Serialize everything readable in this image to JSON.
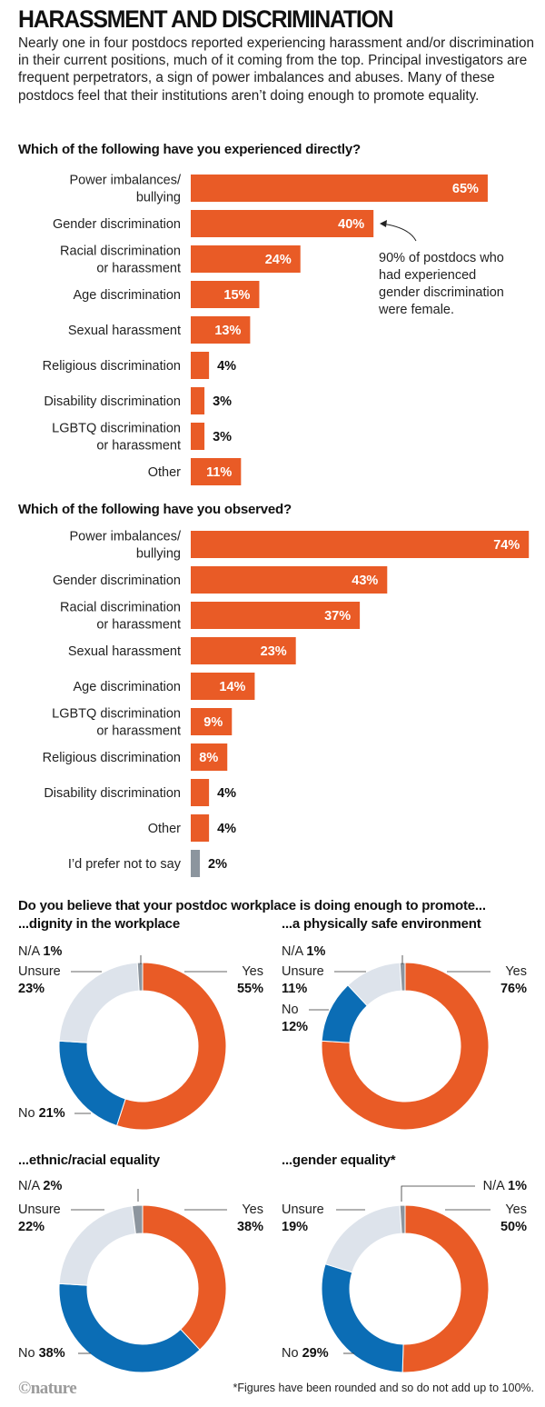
{
  "header": {
    "title": "HARASSMENT AND DISCRIMINATION",
    "intro": "Nearly one in four postdocs reported experiencing harassment and/or discrimination in their current positions, much of it coming from the top. Principal investigators are frequent perpetrators, a sign of power imbalances and abuses. Many of these postdocs feel that their institutions aren’t doing enough to promote equality."
  },
  "colors": {
    "orange": "#e95b26",
    "blue": "#0b6db5",
    "light_grey": "#dde3eb",
    "grey": "#8c959e",
    "text": "#1a1a1a"
  },
  "footer": {
    "logo": "©nature",
    "footnote": "*Figures have been rounded and so do not add up to 100%."
  },
  "chart_data": [
    {
      "type": "bar",
      "orientation": "horizontal",
      "title": "Which of the following have you experienced directly?",
      "unit": "%",
      "categories": [
        [
          "Power imbalances/",
          "bullying"
        ],
        [
          "Gender discrimination"
        ],
        [
          "Racial discrimination",
          "or harassment"
        ],
        [
          "Age discrimination"
        ],
        [
          "Sexual harassment"
        ],
        [
          "Religious discrimination"
        ],
        [
          "Disability discrimination"
        ],
        [
          "LGBTQ discrimination",
          "or harassment"
        ],
        [
          "Other"
        ]
      ],
      "values": [
        65,
        40,
        24,
        15,
        13,
        4,
        3,
        3,
        11
      ],
      "labels": [
        "65%",
        "40%",
        "24%",
        "15%",
        "13%",
        "4%",
        "3%",
        "3%",
        "11%"
      ],
      "bar_colors": [
        "orange",
        "orange",
        "orange",
        "orange",
        "orange",
        "orange",
        "orange",
        "orange",
        "orange"
      ],
      "annotation": {
        "target": "Gender discrimination",
        "lines": [
          "90% of postdocs who",
          "had experienced",
          "gender discrimination",
          "were female."
        ]
      },
      "xlim": [
        0,
        74
      ]
    },
    {
      "type": "bar",
      "orientation": "horizontal",
      "title": "Which of the following have you observed?",
      "unit": "%",
      "categories": [
        [
          "Power imbalances/",
          "bullying"
        ],
        [
          "Gender discrimination"
        ],
        [
          "Racial discrimination",
          "or harassment"
        ],
        [
          "Sexual harassment"
        ],
        [
          "Age discrimination"
        ],
        [
          "LGBTQ discrimination",
          "or harassment"
        ],
        [
          "Religious discrimination"
        ],
        [
          "Disability discrimination"
        ],
        [
          "Other"
        ],
        [
          "I’d prefer not to say"
        ]
      ],
      "values": [
        74,
        43,
        37,
        23,
        14,
        9,
        8,
        4,
        4,
        2
      ],
      "labels": [
        "74%",
        "43%",
        "37%",
        "23%",
        "14%",
        "9%",
        "8%",
        "4%",
        "4%",
        "2%"
      ],
      "bar_colors": [
        "orange",
        "orange",
        "orange",
        "orange",
        "orange",
        "orange",
        "orange",
        "orange",
        "orange",
        "grey"
      ],
      "xlim": [
        0,
        74
      ]
    },
    {
      "type": "pie",
      "variant": "donut",
      "group_title": "Do you believe that your postdoc workplace is doing enough to promote...",
      "title": "...dignity in the workplace",
      "slices": [
        {
          "name": "Yes",
          "value": 55,
          "label": "55%",
          "color": "orange"
        },
        {
          "name": "No",
          "value": 21,
          "label": "21%",
          "color": "blue"
        },
        {
          "name": "Unsure",
          "value": 23,
          "label": "23%",
          "color": "light_grey"
        },
        {
          "name": "N/A",
          "value": 1,
          "label": "1%",
          "color": "grey"
        }
      ]
    },
    {
      "type": "pie",
      "variant": "donut",
      "title": "...a physically safe environment",
      "slices": [
        {
          "name": "Yes",
          "value": 76,
          "label": "76%",
          "color": "orange"
        },
        {
          "name": "No",
          "value": 12,
          "label": "12%",
          "color": "blue"
        },
        {
          "name": "Unsure",
          "value": 11,
          "label": "11%",
          "color": "light_grey"
        },
        {
          "name": "N/A",
          "value": 1,
          "label": "1%",
          "color": "grey"
        }
      ]
    },
    {
      "type": "pie",
      "variant": "donut",
      "title": "...ethnic/racial equality",
      "slices": [
        {
          "name": "Yes",
          "value": 38,
          "label": "38%",
          "color": "orange"
        },
        {
          "name": "No",
          "value": 38,
          "label": "38%",
          "color": "blue"
        },
        {
          "name": "Unsure",
          "value": 22,
          "label": "22%",
          "color": "light_grey"
        },
        {
          "name": "N/A",
          "value": 2,
          "label": "2%",
          "color": "grey"
        }
      ]
    },
    {
      "type": "pie",
      "variant": "donut",
      "title": "...gender equality*",
      "slices": [
        {
          "name": "Yes",
          "value": 50,
          "label": "50%",
          "color": "orange"
        },
        {
          "name": "No",
          "value": 29,
          "label": "29%",
          "color": "blue"
        },
        {
          "name": "Unsure",
          "value": 19,
          "label": "19%",
          "color": "light_grey"
        },
        {
          "name": "N/A",
          "value": 1,
          "label": "1%",
          "color": "grey"
        }
      ]
    }
  ]
}
